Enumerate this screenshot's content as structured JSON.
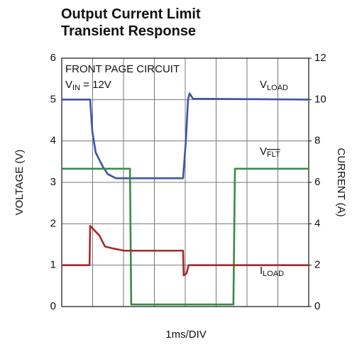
{
  "chart_data": {
    "type": "line",
    "title": "Output Current Limit Transient Response",
    "xlabel": "1ms/DIV",
    "ylabel": "VOLTAGE (V)",
    "y2label": "CURRENT (A)",
    "xlim": [
      0,
      8
    ],
    "xticks": [
      0,
      1,
      2,
      3,
      4,
      5,
      6,
      7,
      8
    ],
    "ylim": [
      0,
      6
    ],
    "yticks": [
      0,
      1,
      2,
      3,
      4,
      5,
      6
    ],
    "y2lim": [
      0,
      12
    ],
    "y2ticks": [
      0,
      2,
      4,
      6,
      8,
      10,
      12
    ],
    "grid": true,
    "annotations": [
      {
        "text": "FRONT PAGE CIRCUIT"
      },
      {
        "text": "V",
        "sub": "IN",
        "after": " = 12V"
      }
    ],
    "series": [
      {
        "name": "V",
        "name_sub": "LOAD",
        "color": "#3a56a8",
        "x": [
          0,
          0.92,
          0.99,
          1.1,
          1.33,
          1.49,
          1.75,
          3.93,
          4.02,
          4.09,
          4.14,
          4.25,
          8
        ],
        "values": [
          5.0,
          5.0,
          4.23,
          3.72,
          3.38,
          3.2,
          3.1,
          3.1,
          4.0,
          5.0,
          5.15,
          5.02,
          5.0
        ]
      },
      {
        "name": "V",
        "name_sub": "FLT",
        "color": "#3a8a45",
        "x": [
          0,
          2.21,
          2.25,
          5.56,
          5.61,
          8
        ],
        "values": [
          3.33,
          3.33,
          0.05,
          0.05,
          3.33,
          3.33
        ]
      },
      {
        "name": "I",
        "name_sub": "LOAD",
        "color": "#a52a2a",
        "axis": "y2",
        "x": [
          0,
          0.9,
          0.92,
          1.22,
          1.4,
          1.68,
          2.02,
          3.93,
          3.95,
          4.04,
          4.11,
          8
        ],
        "values": [
          2.0,
          2.0,
          3.9,
          3.43,
          2.9,
          2.8,
          2.7,
          2.7,
          1.5,
          1.6,
          2.0,
          2.0
        ]
      }
    ]
  }
}
